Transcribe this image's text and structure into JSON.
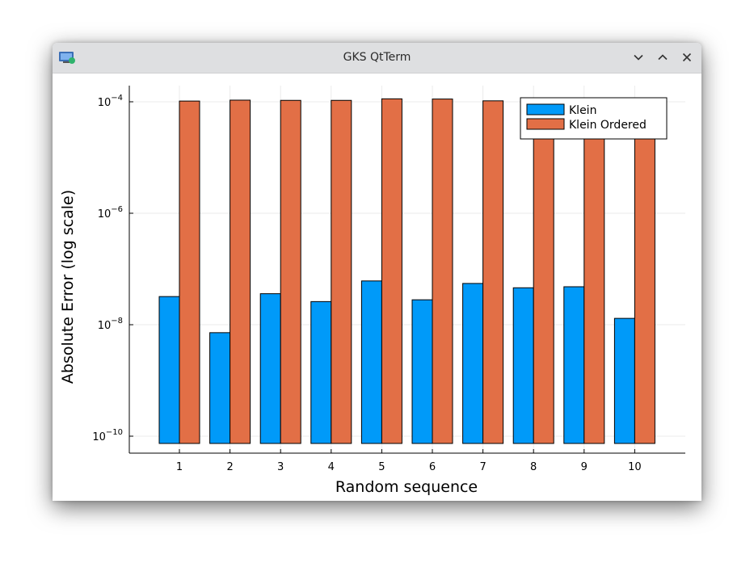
{
  "window": {
    "title": "GKS QtTerm",
    "icons": [
      "app-icon",
      "minimize-icon",
      "maximize-icon",
      "close-icon"
    ]
  },
  "chart_data": {
    "type": "bar",
    "title": "",
    "xlabel": "Random sequence",
    "ylabel": "Absolute Error (log scale)",
    "yscale": "log10",
    "ylim": [
      5e-11,
      0.0002
    ],
    "yticks": [
      {
        "value": 1e-10,
        "base": "10",
        "exp": "−10"
      },
      {
        "value": 1e-08,
        "base": "10",
        "exp": "−8"
      },
      {
        "value": 1e-06,
        "base": "10",
        "exp": "−6"
      },
      {
        "value": 0.0001,
        "base": "10",
        "exp": "−4"
      }
    ],
    "categories": [
      "1",
      "2",
      "3",
      "4",
      "5",
      "6",
      "7",
      "8",
      "9",
      "10"
    ],
    "grid": true,
    "legend_position": "top-right",
    "series": [
      {
        "name": "Klein",
        "color": "#009af9",
        "values": [
          3.2e-08,
          7.2e-09,
          3.6e-08,
          2.6e-08,
          6.1e-08,
          2.8e-08,
          5.5e-08,
          4.6e-08,
          4.8e-08,
          1.3e-08
        ]
      },
      {
        "name": "Klein Ordered",
        "color": "#e26f46",
        "values": [
          0.000103,
          0.000107,
          0.000106,
          0.000106,
          0.000113,
          0.000112,
          0.000104,
          0.000109,
          0.000107,
          0.000105
        ]
      }
    ]
  }
}
